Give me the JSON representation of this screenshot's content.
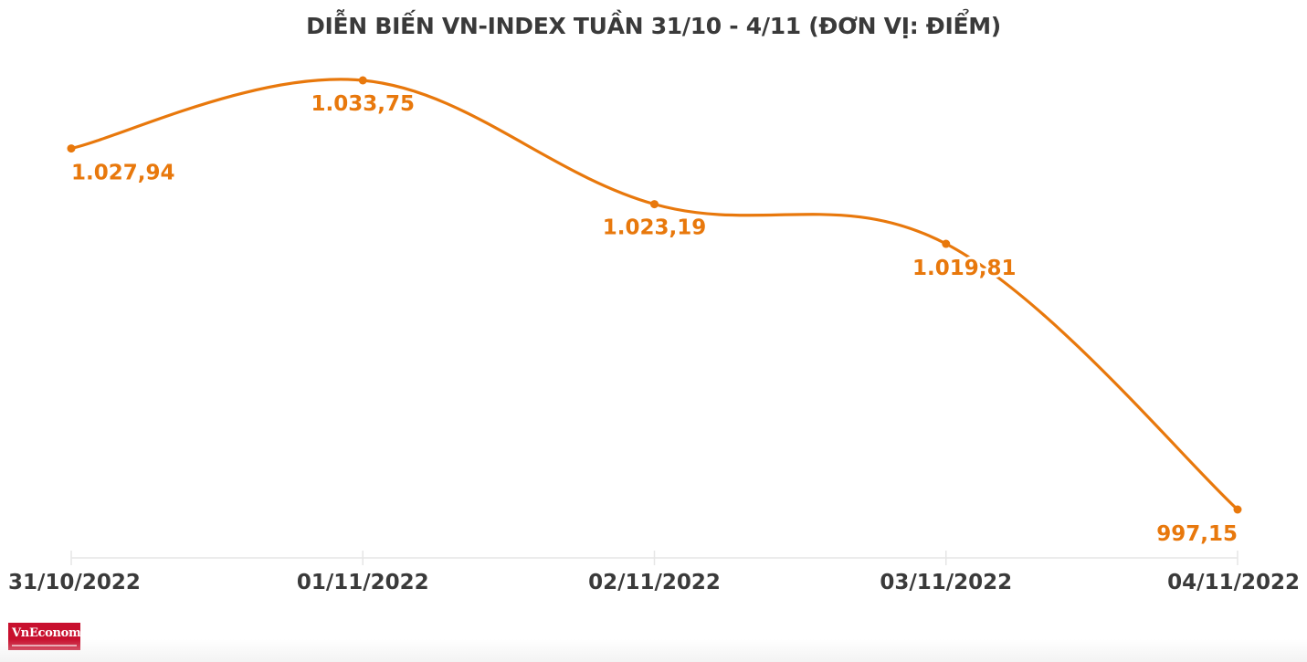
{
  "chart_data": {
    "type": "line",
    "title": "DIỄN BIẾN VN-INDEX TUẦN 31/10 - 4/11 (ĐƠN VỊ: ĐIỂM)",
    "categories": [
      "31/10/2022",
      "01/11/2022",
      "02/11/2022",
      "03/11/2022",
      "04/11/2022"
    ],
    "series": [
      {
        "values": [
          1027.94,
          1033.75,
          1023.19,
          1019.81,
          997.15
        ],
        "labels": [
          "1.027,94",
          "1.033,75",
          "1.023,19",
          "1.019,81",
          "997,15"
        ]
      }
    ],
    "xlabel": "",
    "ylabel": "",
    "grid": false,
    "legend": "none",
    "line_color": "#e8780c",
    "axis_color": "#e6e6e6"
  },
  "branding": {
    "logo_name": "vneconomy-logo",
    "logo_text": "VnEconomy",
    "logo_color": "#c8102e"
  }
}
